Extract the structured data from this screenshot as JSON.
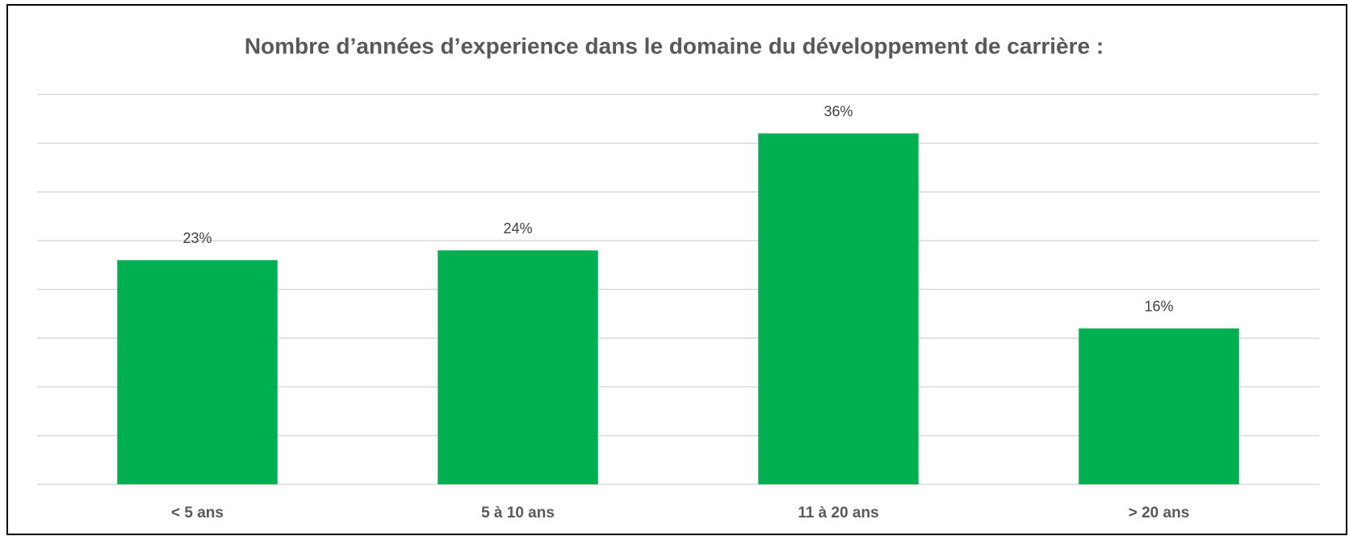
{
  "chart_data": {
    "type": "bar",
    "title": "Nombre d’années d’experience dans le domaine du développement de carrière :",
    "categories": [
      "< 5 ans",
      "5 à 10 ans",
      "11 à 20 ans",
      "> 20 ans"
    ],
    "values": [
      23,
      24,
      36,
      16
    ],
    "value_labels": [
      "23%",
      "24%",
      "36%",
      "16%"
    ],
    "color": "#00b050",
    "ylim": [
      0,
      40
    ],
    "yticks": [
      0,
      5,
      10,
      15,
      20,
      25,
      30,
      35,
      40
    ],
    "grid": true
  }
}
